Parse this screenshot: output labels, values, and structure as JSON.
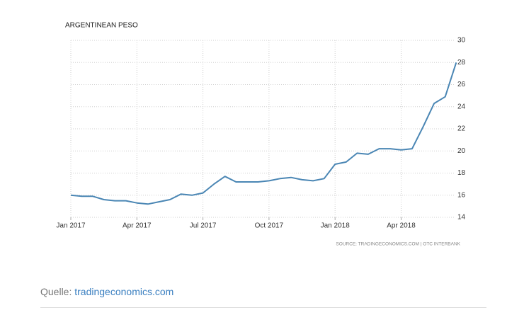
{
  "chart_data": {
    "type": "line",
    "title": "ARGENTINEAN PESO",
    "source": "SOURCE: TRADINGECONOMICS.COM | OTC INTERBANK",
    "categories": [
      "Jan 2017",
      null,
      null,
      null,
      null,
      null,
      "Apr 2017",
      null,
      null,
      null,
      null,
      null,
      "Jul 2017",
      null,
      null,
      null,
      null,
      null,
      "Oct 2017",
      null,
      null,
      null,
      null,
      null,
      "Jan 2018",
      null,
      null,
      null,
      null,
      null,
      "Apr 2018",
      null,
      null,
      null,
      null,
      null
    ],
    "values": [
      16.0,
      15.9,
      15.9,
      15.6,
      15.5,
      15.5,
      15.3,
      15.2,
      15.4,
      15.6,
      16.1,
      16.0,
      16.2,
      17.0,
      17.7,
      17.2,
      17.2,
      17.2,
      17.3,
      17.5,
      17.6,
      17.4,
      17.3,
      17.5,
      18.8,
      19.0,
      19.8,
      19.7,
      20.2,
      20.2,
      20.1,
      20.2,
      22.2,
      24.3,
      24.9,
      28.0
    ],
    "color": "#4a86b4",
    "ylim": [
      14,
      30
    ],
    "yticks": [
      14,
      16,
      18,
      20,
      22,
      24,
      26,
      28,
      30
    ],
    "grid": true
  },
  "footer": {
    "label": "Quelle:",
    "link": "tradingeconomics.com"
  }
}
